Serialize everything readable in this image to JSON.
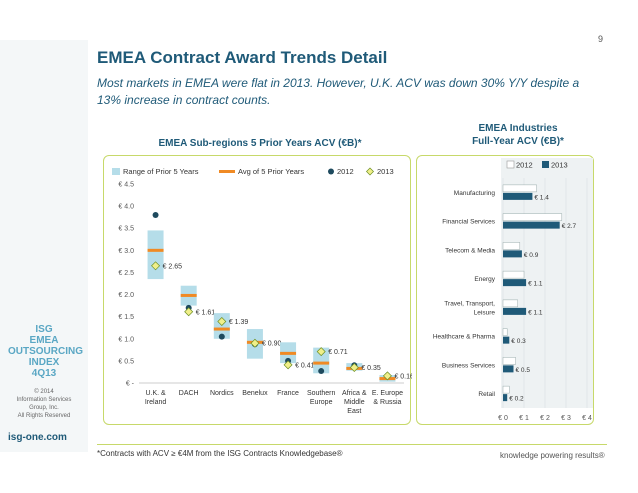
{
  "page": {
    "number": "9",
    "title": "EMEA Contract Award Trends Detail",
    "subtitle": "Most markets in EMEA were flat in 2013. However, U.K. ACV was down 30% Y/Y despite a 13% increase in contract counts.",
    "footnote": "*Contracts with ACV ≥ €4M from the ISG Contracts Knowledgebase®",
    "tagline": "knowledge powering results®",
    "url": "isg-one.com",
    "badge": [
      "ISG",
      "EMEA",
      "OUTSOURCING",
      "INDEX",
      "4Q13"
    ],
    "copyright": [
      "© 2014",
      "Information Services",
      "Group, Inc.",
      "All Rights Reserved"
    ]
  },
  "colors": {
    "brand": "#1f5a78",
    "range_band": "#b5dde9",
    "avg_marker": "#f08a24",
    "dot_2012": "#1e4a5e",
    "diamond_2013": "#f0ef8a",
    "bar_2012": "#ffffff",
    "bar_2013": "#1f5a78",
    "frame": "#c7d96a"
  },
  "chart_data": [
    {
      "type": "bar",
      "title": "EMEA Sub-regions 5 Prior Years ACV (€B)*",
      "categories": [
        [
          "U.K. &",
          "Ireland"
        ],
        [
          "DACH"
        ],
        [
          "Nordics"
        ],
        [
          "Benelux"
        ],
        [
          "France"
        ],
        [
          "Southern",
          "Europe"
        ],
        [
          "Africa &",
          "Middle",
          "East"
        ],
        [
          "E. Europe",
          "& Russia"
        ]
      ],
      "ylim": [
        0,
        4.5
      ],
      "y_ticks": [
        0,
        0.5,
        1.0,
        1.5,
        2.0,
        2.5,
        3.0,
        3.5,
        4.0,
        4.5
      ],
      "y_tick_labels": [
        "€ -",
        "€ 0.5",
        "€ 1.0",
        "€ 1.5",
        "€ 2.0",
        "€ 2.5",
        "€ 3.0",
        "€ 3.5",
        "€ 4.0",
        "€ 4.5"
      ],
      "legend_position": "top",
      "legend": [
        "Range of Prior 5 Years",
        "Avg of 5 Prior Years",
        "2012",
        "2013"
      ],
      "series": [
        {
          "name": "Range of Prior 5 Years",
          "kind": "range",
          "low": [
            2.35,
            1.75,
            1.0,
            0.55,
            0.45,
            0.22,
            0.28,
            0.03
          ],
          "high": [
            3.45,
            2.2,
            1.58,
            1.22,
            0.92,
            0.8,
            0.45,
            0.18
          ]
        },
        {
          "name": "Avg of 5 Prior Years",
          "kind": "avg",
          "values": [
            3.0,
            1.98,
            1.22,
            0.92,
            0.67,
            0.45,
            0.33,
            0.1
          ]
        },
        {
          "name": "2012",
          "kind": "dot",
          "values": [
            3.8,
            1.7,
            1.05,
            0.88,
            0.5,
            0.27,
            0.4,
            0.16
          ]
        },
        {
          "name": "2013",
          "kind": "diamond",
          "values": [
            2.65,
            1.61,
            1.39,
            0.9,
            0.41,
            0.71,
            0.35,
            0.16
          ]
        }
      ],
      "data_labels": [
        "€ 2.65",
        "€ 1.61",
        "€ 1.39",
        "€ 0.90",
        "€ 0.41",
        "€ 0.71",
        "€ 0.35",
        "€ 0.16"
      ]
    },
    {
      "type": "bar",
      "orientation": "horizontal",
      "title": "EMEA Industries Full-Year ACV (€B)*",
      "categories": [
        [
          "Manufacturing"
        ],
        [
          "Financial Services"
        ],
        [
          "Telecom & Media"
        ],
        [
          "Energy"
        ],
        [
          "Travel, Transport,",
          "Leisure"
        ],
        [
          "Healthcare & Pharma"
        ],
        [
          "Business Services"
        ],
        [
          "Retail"
        ]
      ],
      "xlim": [
        0,
        4
      ],
      "x_ticks": [
        0,
        1,
        2,
        3,
        4
      ],
      "x_tick_labels": [
        "€ 0",
        "€ 1",
        "€ 2",
        "€ 3",
        "€ 4"
      ],
      "legend_position": "top",
      "legend": [
        "2012",
        "2013"
      ],
      "series": [
        {
          "name": "2012",
          "values": [
            1.6,
            2.8,
            0.8,
            1.0,
            0.7,
            0.2,
            0.6,
            0.3
          ]
        },
        {
          "name": "2013",
          "values": [
            1.4,
            2.7,
            0.9,
            1.1,
            1.1,
            0.3,
            0.5,
            0.2
          ]
        }
      ],
      "data_labels": [
        "€ 1.4",
        "€ 2.7",
        "€ 0.9",
        "€ 1.1",
        "€ 1.1",
        "€ 0.3",
        "€ 0.5",
        "€ 0.2"
      ]
    }
  ]
}
